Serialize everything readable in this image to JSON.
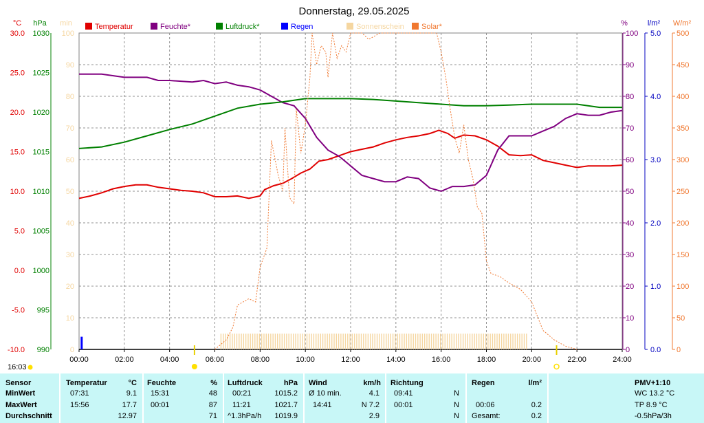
{
  "title": "Donnerstag, 29.05.2025",
  "axis_units": {
    "temp": "°C",
    "press": "hPa",
    "min": "min",
    "hum": "%",
    "rain": "l/m²",
    "solar": "W/m²"
  },
  "legend": [
    {
      "label": "Temperatur",
      "color": "#e00000"
    },
    {
      "label": "Feuchte*",
      "color": "#800080"
    },
    {
      "label": "Luftdruck*",
      "color": "#008000"
    },
    {
      "label": "Regen",
      "color": "#0000ff"
    },
    {
      "label": "Sonnenschein",
      "color": "#f5d6a0"
    },
    {
      "label": "Solar*",
      "color": "#f07830"
    }
  ],
  "left_time": "16:03",
  "chart_data": {
    "type": "line",
    "x_labels": [
      "00:00",
      "02:00",
      "04:00",
      "06:00",
      "08:00",
      "10:00",
      "12:00",
      "14:00",
      "16:00",
      "18:00",
      "20:00",
      "22:00",
      "24:00"
    ],
    "temp_ticks": [
      "30.0",
      "25.0",
      "20.0",
      "15.0",
      "10.0",
      "5.0",
      "0.0",
      "-5.0",
      "-10.0"
    ],
    "press_ticks": [
      "1030",
      "1025",
      "1020",
      "1015",
      "1010",
      "1005",
      "1000",
      "995",
      "990"
    ],
    "min_ticks": [
      "100",
      "90",
      "80",
      "70",
      "60",
      "50",
      "40",
      "30",
      "20",
      "10",
      "0"
    ],
    "hum_ticks": [
      "100",
      "90",
      "80",
      "70",
      "60",
      "50",
      "40",
      "30",
      "20",
      "10",
      "0"
    ],
    "rain_ticks": [
      "5.0",
      "4.0",
      "3.0",
      "2.0",
      "1.0",
      "0.0"
    ],
    "solar_ticks": [
      "500",
      "450",
      "400",
      "350",
      "300",
      "250",
      "200",
      "150",
      "100",
      "50",
      "0"
    ],
    "ranges": {
      "temp": [
        -10,
        30
      ],
      "press": [
        990,
        1030
      ],
      "hum": [
        0,
        100
      ],
      "rain": [
        0,
        5
      ],
      "solar": [
        0,
        500
      ]
    },
    "series": [
      {
        "name": "Temperatur",
        "axis": "temp",
        "color": "#e00000",
        "points": [
          [
            0,
            9.1
          ],
          [
            0.5,
            9.4
          ],
          [
            1,
            9.8
          ],
          [
            1.5,
            10.3
          ],
          [
            2,
            10.6
          ],
          [
            2.5,
            10.8
          ],
          [
            3,
            10.8
          ],
          [
            3.5,
            10.5
          ],
          [
            4,
            10.3
          ],
          [
            4.5,
            10.1
          ],
          [
            5,
            10.0
          ],
          [
            5.5,
            9.8
          ],
          [
            6,
            9.3
          ],
          [
            6.5,
            9.3
          ],
          [
            7,
            9.4
          ],
          [
            7.5,
            9.1
          ],
          [
            8,
            9.4
          ],
          [
            8.2,
            10.2
          ],
          [
            8.6,
            10.7
          ],
          [
            9,
            11.0
          ],
          [
            9.4,
            11.6
          ],
          [
            9.8,
            12.3
          ],
          [
            10.2,
            12.8
          ],
          [
            10.6,
            13.8
          ],
          [
            11,
            14.0
          ],
          [
            11.5,
            14.5
          ],
          [
            12,
            15.0
          ],
          [
            12.5,
            15.3
          ],
          [
            13,
            15.6
          ],
          [
            13.5,
            16.1
          ],
          [
            14,
            16.5
          ],
          [
            14.5,
            16.8
          ],
          [
            15,
            17.0
          ],
          [
            15.5,
            17.3
          ],
          [
            15.9,
            17.7
          ],
          [
            16.3,
            17.3
          ],
          [
            16.6,
            16.7
          ],
          [
            17,
            17.1
          ],
          [
            17.5,
            17.0
          ],
          [
            18,
            16.5
          ],
          [
            18.5,
            15.7
          ],
          [
            19,
            14.6
          ],
          [
            19.5,
            14.5
          ],
          [
            20,
            14.6
          ],
          [
            20.5,
            13.9
          ],
          [
            21,
            13.6
          ],
          [
            21.5,
            13.3
          ],
          [
            22,
            13.0
          ],
          [
            22.5,
            13.2
          ],
          [
            23,
            13.2
          ],
          [
            23.5,
            13.2
          ],
          [
            24,
            13.3
          ]
        ]
      },
      {
        "name": "Feuchte*",
        "axis": "hum",
        "color": "#800080",
        "points": [
          [
            0,
            87
          ],
          [
            1,
            87
          ],
          [
            2,
            86
          ],
          [
            3,
            86
          ],
          [
            3.5,
            85
          ],
          [
            4,
            85
          ],
          [
            5,
            84.5
          ],
          [
            5.5,
            85
          ],
          [
            6,
            84
          ],
          [
            6.5,
            84.5
          ],
          [
            7,
            83.5
          ],
          [
            7.5,
            83
          ],
          [
            8,
            82
          ],
          [
            8.5,
            80
          ],
          [
            9,
            78
          ],
          [
            9.5,
            77
          ],
          [
            10,
            73
          ],
          [
            10.5,
            67
          ],
          [
            11,
            63
          ],
          [
            11.5,
            61
          ],
          [
            12,
            58
          ],
          [
            12.5,
            55
          ],
          [
            13,
            54
          ],
          [
            13.5,
            53
          ],
          [
            14,
            53
          ],
          [
            14.5,
            54.5
          ],
          [
            15,
            54
          ],
          [
            15.5,
            51
          ],
          [
            16,
            50
          ],
          [
            16.5,
            51.5
          ],
          [
            17,
            51.5
          ],
          [
            17.5,
            52
          ],
          [
            18,
            55
          ],
          [
            18.5,
            63
          ],
          [
            19,
            67.5
          ],
          [
            19.5,
            67.5
          ],
          [
            20,
            67.5
          ],
          [
            20.5,
            69
          ],
          [
            21,
            70.5
          ],
          [
            21.5,
            73
          ],
          [
            22,
            74.5
          ],
          [
            22.5,
            74
          ],
          [
            23,
            74
          ],
          [
            23.5,
            75
          ],
          [
            24,
            75.5
          ]
        ]
      },
      {
        "name": "Luftdruck*",
        "axis": "press",
        "color": "#008000",
        "points": [
          [
            0,
            1015.4
          ],
          [
            1,
            1015.6
          ],
          [
            2,
            1016.2
          ],
          [
            3,
            1017.0
          ],
          [
            4,
            1017.8
          ],
          [
            5,
            1018.5
          ],
          [
            6,
            1019.5
          ],
          [
            7,
            1020.5
          ],
          [
            8,
            1021.0
          ],
          [
            9,
            1021.3
          ],
          [
            10,
            1021.7
          ],
          [
            11,
            1021.7
          ],
          [
            12,
            1021.7
          ],
          [
            13,
            1021.6
          ],
          [
            14,
            1021.4
          ],
          [
            15,
            1021.2
          ],
          [
            16,
            1021.0
          ],
          [
            17,
            1020.8
          ],
          [
            18,
            1020.8
          ],
          [
            19,
            1020.9
          ],
          [
            20,
            1021.0
          ],
          [
            21,
            1021.0
          ],
          [
            22,
            1021.0
          ],
          [
            23,
            1020.6
          ],
          [
            24,
            1020.6
          ]
        ]
      },
      {
        "name": "Solar*",
        "axis": "solar",
        "color": "#f07830",
        "points": [
          [
            6,
            0
          ],
          [
            6.5,
            15
          ],
          [
            6.8,
            35
          ],
          [
            7,
            70
          ],
          [
            7.5,
            80
          ],
          [
            7.8,
            75
          ],
          [
            8,
            130
          ],
          [
            8.3,
            160
          ],
          [
            8.5,
            330
          ],
          [
            8.8,
            275
          ],
          [
            9,
            250
          ],
          [
            9.1,
            350
          ],
          [
            9.3,
            240
          ],
          [
            9.5,
            230
          ],
          [
            9.6,
            380
          ],
          [
            9.8,
            310
          ],
          [
            10,
            355
          ],
          [
            10.2,
            430
          ],
          [
            10.3,
            500
          ],
          [
            10.5,
            450
          ],
          [
            10.7,
            480
          ],
          [
            10.9,
            470
          ],
          [
            11,
            430
          ],
          [
            11.2,
            500
          ],
          [
            11.4,
            460
          ],
          [
            11.6,
            480
          ],
          [
            11.8,
            470
          ],
          [
            12,
            500
          ],
          [
            12.5,
            500
          ],
          [
            12.8,
            490
          ],
          [
            13.3,
            500
          ],
          [
            14,
            500
          ],
          [
            15,
            500
          ],
          [
            15.5,
            500
          ],
          [
            15.8,
            500
          ],
          [
            16,
            470
          ],
          [
            16.2,
            430
          ],
          [
            16.4,
            380
          ],
          [
            16.6,
            335
          ],
          [
            16.8,
            310
          ],
          [
            17,
            355
          ],
          [
            17.2,
            300
          ],
          [
            17.4,
            270
          ],
          [
            17.6,
            225
          ],
          [
            17.8,
            215
          ],
          [
            18,
            140
          ],
          [
            18.2,
            120
          ],
          [
            18.6,
            115
          ],
          [
            19,
            105
          ],
          [
            19.5,
            95
          ],
          [
            20,
            75
          ],
          [
            20.5,
            30
          ],
          [
            21,
            15
          ],
          [
            21.5,
            5
          ],
          [
            22,
            0
          ]
        ]
      },
      {
        "name": "Regen",
        "axis": "rain",
        "color": "#0000ff",
        "points": [
          [
            0.1,
            0.2
          ]
        ]
      }
    ],
    "sunshine": {
      "start": 6.25,
      "end": 19.8,
      "color": "#f5d6a0"
    },
    "markers": {
      "sunrise": 5.1,
      "sunset": 21.1
    }
  },
  "stats": {
    "sensor": {
      "header": "Sensor",
      "min_label": "MinWert",
      "max_label": "MaxWert",
      "avg_label": "Durchschnitt"
    },
    "temperature": {
      "header": "Temperatur",
      "unit": "°C",
      "min_time": "07:31",
      "min_val": "9.1",
      "max_time": "15:56",
      "max_val": "17.7",
      "avg": "12.97"
    },
    "humidity": {
      "header": "Feuchte",
      "unit": "%",
      "min_time": "15:31",
      "min_val": "48",
      "max_time": "00:01",
      "max_val": "87",
      "avg": "71"
    },
    "pressure": {
      "header": "Luftdruck",
      "unit": "hPa",
      "min_time": "00:21",
      "min_val": "1015.2",
      "max_time": "11:21",
      "max_val": "1021.7",
      "avg_note": "^1.3hPa/h",
      "avg": "1019.9"
    },
    "wind": {
      "header": "Wind",
      "unit": "km/h",
      "row1_label": "Ø 10 min.",
      "row1_val": "4.1",
      "row2_label": "14:41",
      "row2_val": "N 7.2",
      "avg": "2.9"
    },
    "direction": {
      "header": "Richtung",
      "row1_time": "09:41",
      "row1_val": "N",
      "row2_time": "00:01",
      "row2_val": "N",
      "row3_val": "N"
    },
    "rain": {
      "header": "Regen",
      "unit": "l/m²",
      "row2_time": "00:06",
      "row2_val": "0.2",
      "row3_label": "Gesamt:",
      "row3_val": "0.2"
    },
    "pmv": {
      "header": "PMV+1:10",
      "wc": "WC 13.2 °C",
      "tp": "TP 8.9 °C",
      "trend": "-0.5hPa/3h"
    }
  }
}
